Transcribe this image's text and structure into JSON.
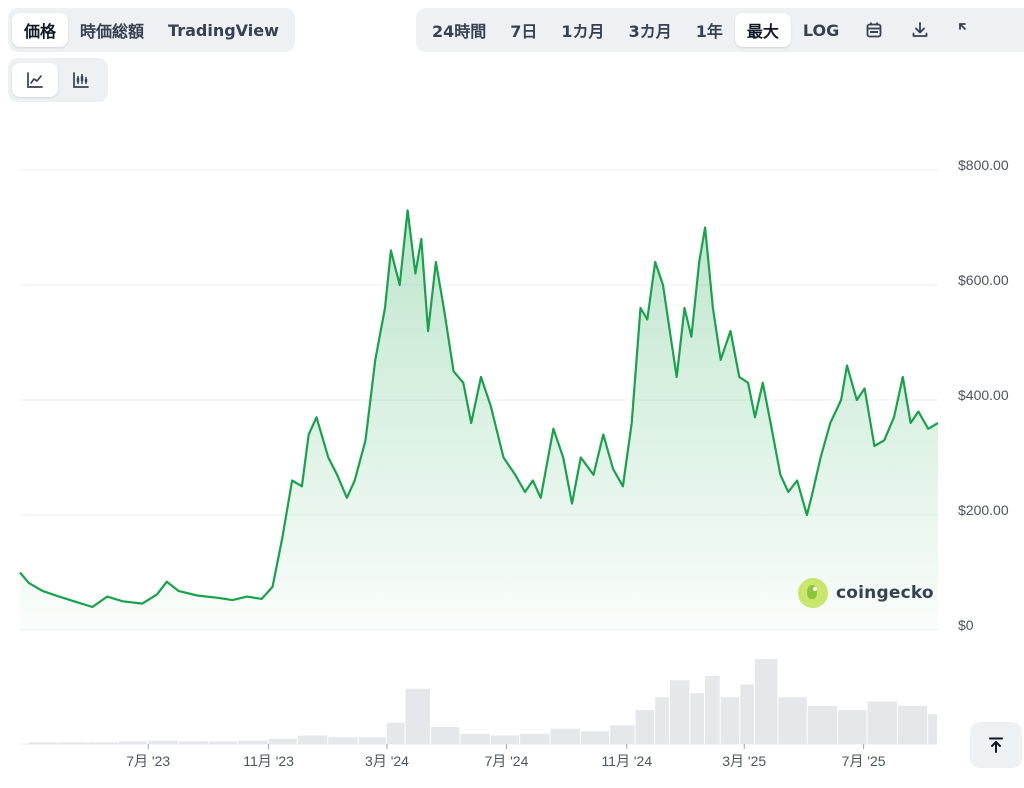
{
  "tabs": [
    {
      "label": "価格",
      "active": true
    },
    {
      "label": "時価総額",
      "active": false
    },
    {
      "label": "TradingView",
      "active": false
    }
  ],
  "ranges": [
    {
      "label": "24時間",
      "active": false
    },
    {
      "label": "7日",
      "active": false
    },
    {
      "label": "1カ月",
      "active": false
    },
    {
      "label": "3カ月",
      "active": false
    },
    {
      "label": "1年",
      "active": false
    },
    {
      "label": "最大",
      "active": true
    },
    {
      "label": "LOG",
      "active": false
    }
  ],
  "range_icons": [
    "calendar-icon",
    "download-icon",
    "expand-icon"
  ],
  "chart_types": [
    {
      "icon": "line-chart-icon",
      "active": true
    },
    {
      "icon": "candlestick-chart-icon",
      "active": false
    }
  ],
  "watermark": "coingecko",
  "colors": {
    "line": "#16a34a",
    "fill": "#16a34a",
    "volume": "#e5e7eb",
    "grid": "#eceff2"
  },
  "chart_data": {
    "type": "area",
    "y_ticks": [
      "$800.00",
      "$600.00",
      "$400.00",
      "$200.00",
      "$0"
    ],
    "ylim": [
      0,
      800
    ],
    "x_ticks": [
      "7月 '23",
      "11月 '23",
      "3月 '24",
      "7月 '24",
      "11月 '24",
      "3月 '25",
      "7月 '25"
    ],
    "xlim": [
      "2023-02-20",
      "2025-09-15"
    ],
    "grid": true,
    "series": [
      {
        "values": [
          [
            "2023-02-20",
            100
          ],
          [
            "2023-03-01",
            82
          ],
          [
            "2023-03-15",
            68
          ],
          [
            "2023-04-01",
            58
          ],
          [
            "2023-04-20",
            48
          ],
          [
            "2023-05-05",
            40
          ],
          [
            "2023-05-20",
            58
          ],
          [
            "2023-06-05",
            50
          ],
          [
            "2023-06-25",
            46
          ],
          [
            "2023-07-10",
            62
          ],
          [
            "2023-07-20",
            84
          ],
          [
            "2023-08-01",
            68
          ],
          [
            "2023-08-20",
            60
          ],
          [
            "2023-09-10",
            56
          ],
          [
            "2023-09-25",
            52
          ],
          [
            "2023-10-10",
            58
          ],
          [
            "2023-10-25",
            54
          ],
          [
            "2023-11-05",
            75
          ],
          [
            "2023-11-15",
            160
          ],
          [
            "2023-11-25",
            260
          ],
          [
            "2023-12-05",
            250
          ],
          [
            "2023-12-12",
            340
          ],
          [
            "2023-12-20",
            370
          ],
          [
            "2024-01-01",
            300
          ],
          [
            "2024-01-10",
            270
          ],
          [
            "2024-01-20",
            230
          ],
          [
            "2024-01-28",
            260
          ],
          [
            "2024-02-08",
            330
          ],
          [
            "2024-02-18",
            470
          ],
          [
            "2024-02-28",
            560
          ],
          [
            "2024-03-05",
            660
          ],
          [
            "2024-03-14",
            600
          ],
          [
            "2024-03-22",
            730
          ],
          [
            "2024-03-30",
            620
          ],
          [
            "2024-04-05",
            680
          ],
          [
            "2024-04-12",
            520
          ],
          [
            "2024-04-20",
            640
          ],
          [
            "2024-04-28",
            560
          ],
          [
            "2024-05-08",
            450
          ],
          [
            "2024-05-18",
            430
          ],
          [
            "2024-05-26",
            360
          ],
          [
            "2024-06-05",
            440
          ],
          [
            "2024-06-15",
            390
          ],
          [
            "2024-06-28",
            300
          ],
          [
            "2024-07-10",
            270
          ],
          [
            "2024-07-20",
            240
          ],
          [
            "2024-07-28",
            260
          ],
          [
            "2024-08-05",
            230
          ],
          [
            "2024-08-18",
            350
          ],
          [
            "2024-08-28",
            300
          ],
          [
            "2024-09-06",
            220
          ],
          [
            "2024-09-15",
            300
          ],
          [
            "2024-09-28",
            270
          ],
          [
            "2024-10-08",
            340
          ],
          [
            "2024-10-18",
            280
          ],
          [
            "2024-10-28",
            250
          ],
          [
            "2024-11-06",
            360
          ],
          [
            "2024-11-15",
            560
          ],
          [
            "2024-11-22",
            540
          ],
          [
            "2024-11-30",
            640
          ],
          [
            "2024-12-08",
            600
          ],
          [
            "2024-12-15",
            520
          ],
          [
            "2024-12-22",
            440
          ],
          [
            "2024-12-30",
            560
          ],
          [
            "2025-01-06",
            510
          ],
          [
            "2025-01-14",
            640
          ],
          [
            "2025-01-20",
            700
          ],
          [
            "2025-01-28",
            560
          ],
          [
            "2025-02-05",
            470
          ],
          [
            "2025-02-15",
            520
          ],
          [
            "2025-02-24",
            440
          ],
          [
            "2025-03-05",
            430
          ],
          [
            "2025-03-12",
            370
          ],
          [
            "2025-03-20",
            430
          ],
          [
            "2025-03-28",
            360
          ],
          [
            "2025-04-07",
            270
          ],
          [
            "2025-04-15",
            240
          ],
          [
            "2025-04-24",
            260
          ],
          [
            "2025-05-04",
            200
          ],
          [
            "2025-05-10",
            240
          ],
          [
            "2025-05-18",
            300
          ],
          [
            "2025-05-28",
            360
          ],
          [
            "2025-06-08",
            400
          ],
          [
            "2025-06-14",
            460
          ],
          [
            "2025-06-24",
            400
          ],
          [
            "2025-07-02",
            420
          ],
          [
            "2025-07-12",
            320
          ],
          [
            "2025-07-22",
            330
          ],
          [
            "2025-08-01",
            370
          ],
          [
            "2025-08-10",
            440
          ],
          [
            "2025-08-18",
            360
          ],
          [
            "2025-08-26",
            380
          ],
          [
            "2025-09-05",
            350
          ],
          [
            "2025-09-15",
            360
          ]
        ]
      }
    ],
    "volume": [
      [
        "2023-03-01",
        0.02
      ],
      [
        "2023-04-01",
        0.02
      ],
      [
        "2023-05-01",
        0.02
      ],
      [
        "2023-06-01",
        0.03
      ],
      [
        "2023-07-01",
        0.04
      ],
      [
        "2023-08-01",
        0.03
      ],
      [
        "2023-09-01",
        0.03
      ],
      [
        "2023-10-01",
        0.04
      ],
      [
        "2023-11-01",
        0.06
      ],
      [
        "2023-12-01",
        0.1
      ],
      [
        "2024-01-01",
        0.08
      ],
      [
        "2024-02-01",
        0.08
      ],
      [
        "2024-03-01",
        0.25
      ],
      [
        "2024-03-20",
        0.65
      ],
      [
        "2024-04-15",
        0.2
      ],
      [
        "2024-05-15",
        0.12
      ],
      [
        "2024-06-15",
        0.1
      ],
      [
        "2024-07-15",
        0.12
      ],
      [
        "2024-08-15",
        0.18
      ],
      [
        "2024-09-15",
        0.15
      ],
      [
        "2024-10-15",
        0.22
      ],
      [
        "2024-11-10",
        0.4
      ],
      [
        "2024-11-30",
        0.55
      ],
      [
        "2024-12-15",
        0.75
      ],
      [
        "2025-01-05",
        0.6
      ],
      [
        "2025-01-20",
        0.8
      ],
      [
        "2025-02-05",
        0.55
      ],
      [
        "2025-02-25",
        0.7
      ],
      [
        "2025-03-12",
        1.0
      ],
      [
        "2025-04-05",
        0.55
      ],
      [
        "2025-05-05",
        0.45
      ],
      [
        "2025-06-05",
        0.4
      ],
      [
        "2025-07-05",
        0.5
      ],
      [
        "2025-08-05",
        0.45
      ],
      [
        "2025-09-05",
        0.35
      ]
    ]
  }
}
